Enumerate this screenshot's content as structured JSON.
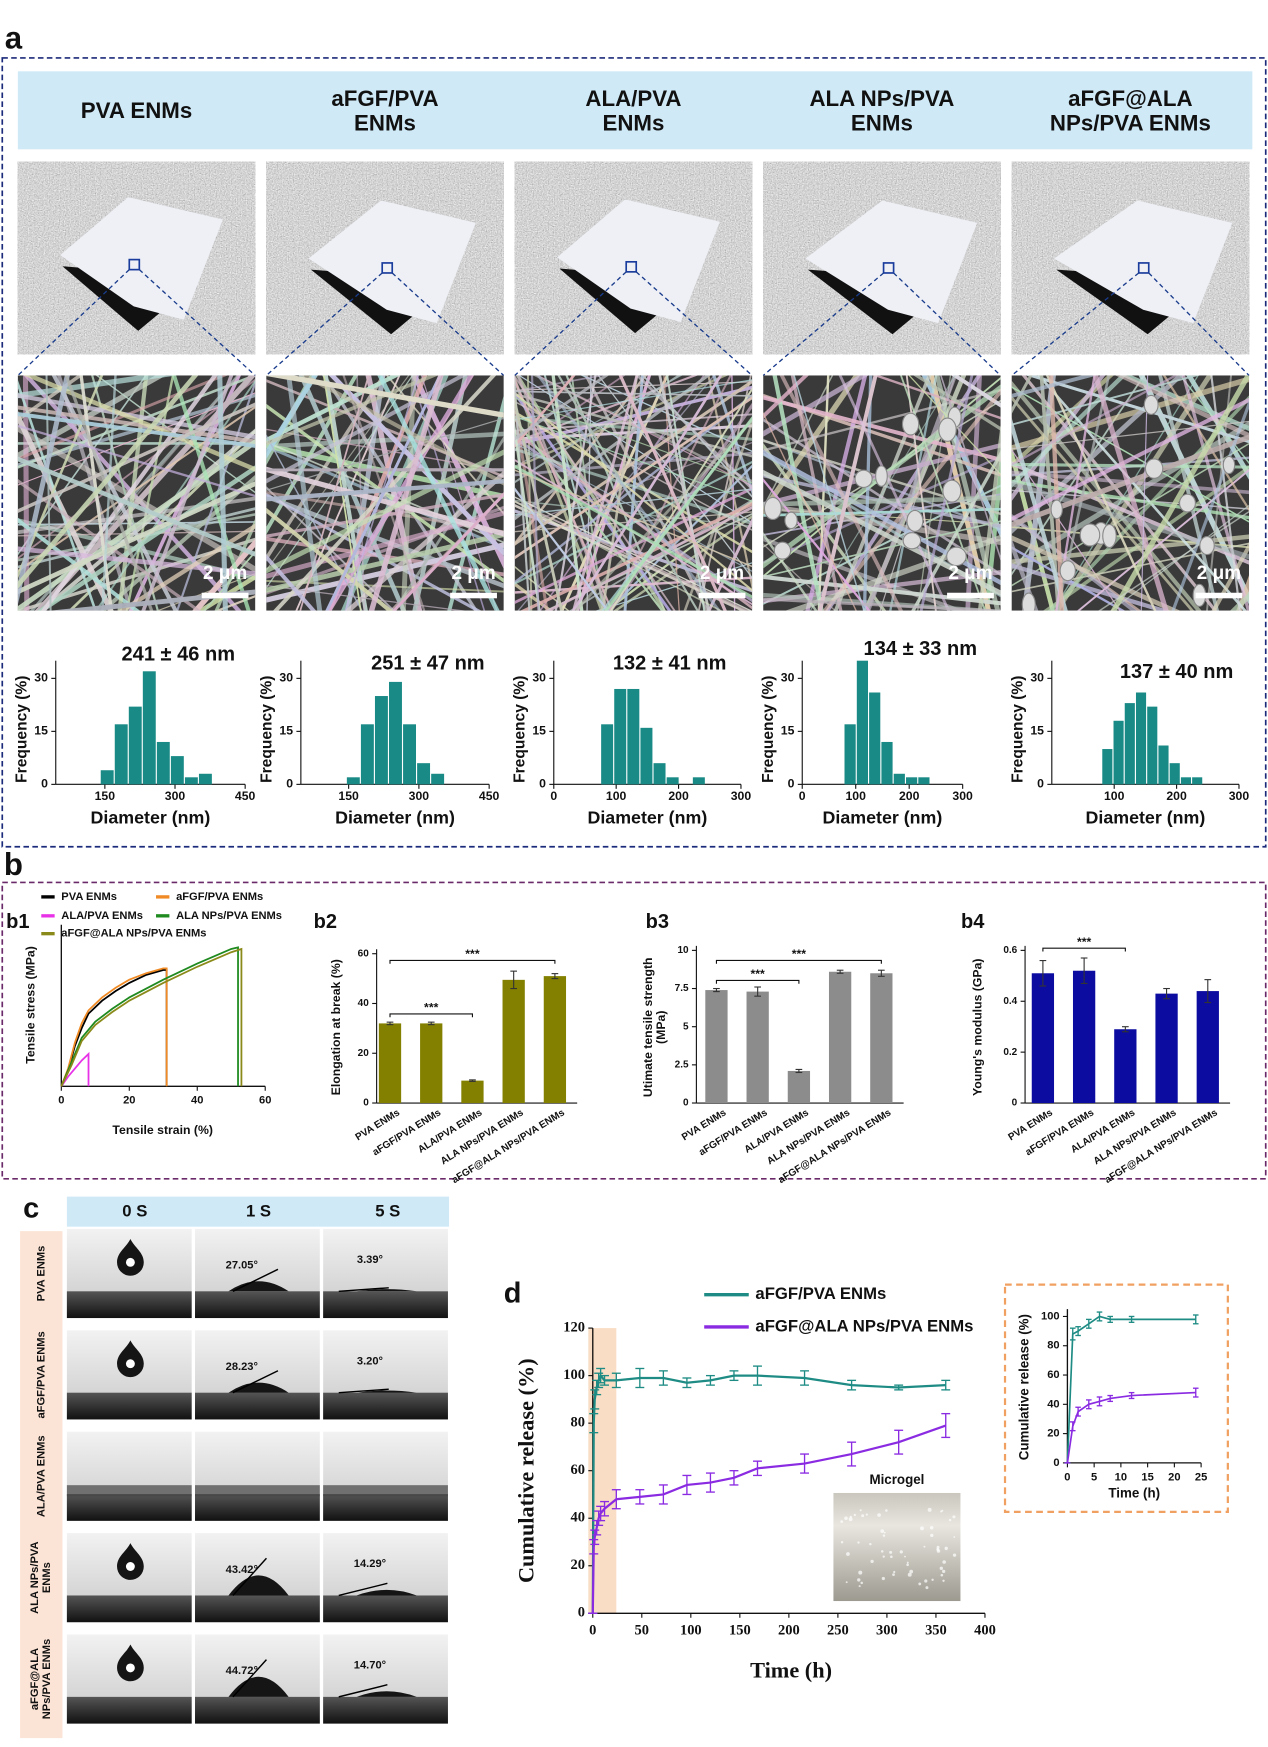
{
  "panel_a": {
    "label": "a",
    "samples": [
      "PVA ENMs",
      "aFGF/PVA ENMs",
      "ALA/PVA ENMs",
      "ALA NPs/PVA ENMs",
      "aFGF@ALA NPs/PVA ENMs"
    ],
    "scale_bar": "2 μm"
  },
  "panel_b": {
    "label": "b",
    "sublabels": [
      "b1",
      "b2",
      "b3",
      "b4"
    ]
  },
  "panel_c": {
    "label": "c",
    "times": [
      "0 S",
      "1 S",
      "5 S"
    ],
    "rows": [
      {
        "label": "PVA ENMs",
        "angles": [
          "27.05°",
          "3.39°"
        ]
      },
      {
        "label": "aFGF/PVA ENMs",
        "angles": [
          "28.23°",
          "3.20°"
        ]
      },
      {
        "label": "ALA/PVA ENMs",
        "angles": []
      },
      {
        "label": "ALA NPs/PVA ENMs",
        "angles": [
          "43.42°",
          "14.29°"
        ]
      },
      {
        "label": "aFGF@ALA NPs/PVA ENMs",
        "angles": [
          "44.72°",
          "14.70°"
        ]
      }
    ]
  },
  "panel_d": {
    "label": "d",
    "photo_label": "Microgel"
  },
  "chart_data": [
    {
      "type": "histogram",
      "title": "241 ± 46 nm",
      "x_label": "Diameter (nm)",
      "y_label": "Frequency (%)",
      "color": "#1a8a86",
      "bins": [
        140,
        170,
        200,
        230,
        260,
        290,
        320,
        350,
        380
      ],
      "values": [
        4,
        17,
        22,
        32,
        12,
        8,
        2,
        3
      ],
      "xlim": [
        45,
        450
      ],
      "xticks": [
        150,
        300,
        450
      ],
      "ylim": [
        0,
        35
      ],
      "yticks": [
        0,
        15,
        30
      ]
    },
    {
      "type": "histogram",
      "title": "251 ± 47 nm",
      "x_label": "Diameter (nm)",
      "y_label": "Frequency (%)",
      "color": "#1a8a86",
      "bins": [
        145,
        175,
        205,
        235,
        265,
        295,
        325,
        355
      ],
      "values": [
        2,
        17,
        25,
        29,
        17,
        6,
        3
      ],
      "xlim": [
        48,
        450
      ],
      "xticks": [
        150,
        300,
        450
      ],
      "ylim": [
        0,
        35
      ],
      "yticks": [
        0,
        15,
        30
      ]
    },
    {
      "type": "histogram",
      "title": "132 ± 41 nm",
      "x_label": "Diameter (nm)",
      "y_label": "Frequency (%)",
      "color": "#1a8a86",
      "bins": [
        75,
        96,
        117,
        138,
        159,
        180,
        201,
        222,
        243
      ],
      "values": [
        17,
        27,
        27,
        16,
        6,
        2,
        0,
        2
      ],
      "xlim": [
        0,
        300
      ],
      "xticks": [
        0,
        100,
        200,
        300
      ],
      "ylim": [
        0,
        35
      ],
      "yticks": [
        0,
        15,
        30
      ]
    },
    {
      "type": "histogram",
      "title": "134 ± 33 nm",
      "x_label": "Diameter (nm)",
      "y_label": "Frequency (%)",
      "color": "#1a8a86",
      "bins": [
        78,
        101,
        124,
        147,
        170,
        193,
        216,
        239
      ],
      "values": [
        17,
        35,
        26,
        12,
        3,
        2,
        2
      ],
      "xlim": [
        0,
        300
      ],
      "xticks": [
        0,
        100,
        200,
        300
      ],
      "ylim": [
        0,
        35
      ],
      "yticks": [
        0,
        15,
        30
      ]
    },
    {
      "type": "histogram",
      "title": "137 ± 40 nm",
      "x_label": "Diameter (nm)",
      "y_label": "Frequency (%)",
      "color": "#1a8a86",
      "bins": [
        80,
        98,
        116,
        134,
        152,
        170,
        188,
        206,
        224,
        242
      ],
      "values": [
        10,
        18,
        23,
        26,
        22,
        11,
        6,
        2,
        2
      ],
      "xlim": [
        0,
        300
      ],
      "xticks": [
        100,
        200,
        300
      ],
      "ylim": [
        0,
        35
      ],
      "yticks": [
        0,
        15,
        30
      ]
    },
    {
      "type": "line",
      "x_label": "Tensile strain (%)",
      "y_label": "Tensile stress (MPa)",
      "xlim": [
        0,
        60
      ],
      "xticks": [
        0,
        20,
        40,
        60
      ],
      "ylim": [
        0,
        10
      ],
      "series": [
        {
          "name": "PVA ENMs",
          "color": "#000000",
          "x": [
            0,
            2,
            4,
            6,
            8,
            12,
            16,
            20,
            25,
            30,
            31,
            31
          ],
          "values": [
            0,
            1,
            2.5,
            3.6,
            4.5,
            5.3,
            5.9,
            6.4,
            6.9,
            7.2,
            7.2,
            0
          ]
        },
        {
          "name": "aFGF/PVA ENMs",
          "color": "#f08a24",
          "x": [
            0,
            2,
            4,
            6,
            8,
            12,
            16,
            20,
            25,
            30,
            31,
            31
          ],
          "values": [
            0,
            1.1,
            2.7,
            3.9,
            4.7,
            5.5,
            6.1,
            6.6,
            7,
            7.3,
            7.3,
            0
          ]
        },
        {
          "name": "ALA/PVA ENMs",
          "color": "#e832e8",
          "x": [
            0,
            2,
            4,
            6,
            8,
            8
          ],
          "values": [
            0,
            0.6,
            1.1,
            1.6,
            2,
            0
          ]
        },
        {
          "name": "ALA NPs/PVA ENMs",
          "color": "#1f8a1f",
          "x": [
            0,
            3,
            6,
            10,
            15,
            20,
            30,
            40,
            50,
            52,
            52
          ],
          "values": [
            0,
            1.5,
            3,
            4,
            4.8,
            5.5,
            6.6,
            7.6,
            8.5,
            8.6,
            0
          ]
        },
        {
          "name": "aFGF@ALA NPs/PVA ENMs",
          "color": "#8a8a1a",
          "x": [
            0,
            3,
            6,
            10,
            15,
            20,
            30,
            40,
            50,
            53,
            53
          ],
          "values": [
            0,
            1.3,
            2.8,
            3.8,
            4.6,
            5.3,
            6.4,
            7.4,
            8.3,
            8.5,
            0
          ]
        }
      ]
    },
    {
      "type": "bar",
      "y_label": "Elongation at break (%)",
      "color": "#838000",
      "categories": [
        "PVA ENMs",
        "aFGF/PVA ENMs",
        "ALA/PVA ENMs",
        "ALA NPs/PVA ENMs",
        "aFGF@ALA NPs/PVA ENMs"
      ],
      "values": [
        32,
        32,
        9,
        49.5,
        51
      ],
      "errors": [
        0.5,
        0.5,
        0.3,
        3.5,
        1
      ],
      "ylim": [
        0,
        60
      ],
      "yticks": [
        0,
        20,
        40,
        60
      ],
      "significance": [
        "***",
        "***"
      ]
    },
    {
      "type": "bar",
      "y_label": "Utimate tensile strength (MPa)",
      "color": "#8c8c8c",
      "categories": [
        "PVA ENMs",
        "aFGF/PVA ENMs",
        "ALA/PVA ENMs",
        "ALA NPs/PVA ENMs",
        "aFGF@ALA NPs/PVA ENMs"
      ],
      "values": [
        7.4,
        7.3,
        2.1,
        8.6,
        8.5
      ],
      "errors": [
        0.1,
        0.3,
        0.1,
        0.1,
        0.2
      ],
      "ylim": [
        0,
        10
      ],
      "yticks": [
        0,
        2.5,
        5,
        7.5,
        10
      ],
      "significance": [
        "***",
        "***"
      ]
    },
    {
      "type": "bar",
      "y_label": "Young's modulus (GPa)",
      "color": "#0c0ca0",
      "categories": [
        "PVA ENMs",
        "aFGF/PVA ENMs",
        "ALA/PVA ENMs",
        "ALA NPs/PVA ENMs",
        "aFGF@ALA NPs/PVA ENMs"
      ],
      "values": [
        0.51,
        0.52,
        0.29,
        0.43,
        0.44
      ],
      "errors": [
        0.05,
        0.05,
        0.01,
        0.02,
        0.045
      ],
      "ylim": [
        0,
        0.6
      ],
      "yticks": [
        0,
        0.2,
        0.4,
        0.6
      ],
      "significance": [
        "***"
      ]
    },
    {
      "type": "line",
      "x_label": "Time (h)",
      "y_label": "Cumulative release (%)",
      "x": [
        0,
        1,
        2,
        4,
        6,
        8,
        12,
        24,
        48,
        72,
        96,
        120,
        144,
        168,
        216,
        264,
        312,
        360
      ],
      "xlim": [
        0,
        400
      ],
      "xticks": [
        0,
        50,
        100,
        150,
        200,
        250,
        300,
        350,
        400
      ],
      "ylim": [
        0,
        120
      ],
      "yticks": [
        0,
        20,
        40,
        60,
        80,
        100,
        120
      ],
      "shaded_range": [
        0,
        24
      ],
      "series": [
        {
          "name": "aFGF/PVA ENMs",
          "color": "#1e8c84",
          "values": [
            0,
            80,
            90,
            95,
            98,
            100,
            98,
            98,
            99,
            99,
            97,
            98,
            100,
            100,
            99,
            96,
            95,
            96
          ],
          "errors": [
            0,
            4,
            4,
            3,
            3,
            3,
            2,
            3,
            4,
            3,
            2,
            2,
            2,
            4,
            3,
            2,
            1,
            2
          ]
        },
        {
          "name": "aFGF@ALA NPs/PVA ENMs",
          "color": "#8a2be2",
          "values": [
            0,
            28,
            32,
            36,
            40,
            42,
            44,
            48,
            49,
            50,
            54,
            55,
            57,
            61,
            63,
            67,
            72,
            79
          ],
          "errors": [
            0,
            3,
            3,
            3,
            3,
            3,
            3,
            4,
            3,
            4,
            4,
            4,
            3,
            3,
            4,
            5,
            5,
            5
          ]
        }
      ]
    },
    {
      "type": "line",
      "x_label": "Time (h)",
      "y_label": "Cumulative release (%)",
      "x": [
        0,
        1,
        2,
        4,
        6,
        8,
        12,
        24
      ],
      "xlim": [
        0,
        25
      ],
      "xticks": [
        0,
        5,
        10,
        15,
        20,
        25
      ],
      "ylim": [
        0,
        105
      ],
      "yticks": [
        0,
        20,
        40,
        60,
        80,
        100
      ],
      "series": [
        {
          "color": "#1e8c84",
          "values": [
            0,
            88,
            90,
            95,
            100,
            98,
            98,
            98
          ],
          "errors": [
            0,
            4,
            3,
            3,
            3,
            2,
            2,
            3
          ]
        },
        {
          "color": "#8a2be2",
          "values": [
            0,
            25,
            35,
            40,
            42,
            44,
            46,
            48
          ],
          "errors": [
            0,
            3,
            3,
            3,
            3,
            2,
            2,
            3
          ]
        }
      ]
    }
  ]
}
